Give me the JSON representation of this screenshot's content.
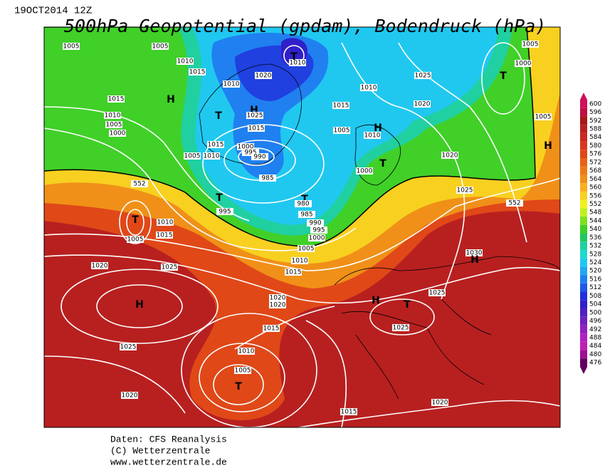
{
  "header": {
    "date": "19OCT2014 12Z",
    "title": "500hPa Geopotential (gpdam), Bodendruck (hPa)"
  },
  "map": {
    "labels": [
      "1005",
      "1005",
      "1010",
      "1015",
      "1010",
      "1020",
      "1010",
      "T",
      "H",
      "T",
      "1025",
      "1015",
      "1015",
      "1010",
      "1005",
      "1000",
      "H",
      "1015",
      "1005",
      "1010",
      "1000",
      "995",
      "990",
      "985",
      "T",
      "995",
      "T",
      "980",
      "985",
      "990",
      "995",
      "1000",
      "1005",
      "1010",
      "1015",
      "1020",
      "1020",
      "1015",
      "1010",
      "1005",
      "T",
      "1020",
      "1025",
      "H",
      "1020",
      "1025",
      "1015",
      "1010",
      "T",
      "1005",
      "1010",
      "1015",
      "1005",
      "1010",
      "H",
      "1000",
      "T",
      "1020",
      "1025",
      "1020",
      "1025",
      "T",
      "1000",
      "1005",
      "1005",
      "H",
      "552",
      "552",
      "1030",
      "H",
      "1025",
      "H",
      "T",
      "1025",
      "1020",
      "1015"
    ]
  },
  "colorbar": {
    "levels": [
      600,
      596,
      592,
      588,
      584,
      580,
      576,
      572,
      568,
      564,
      560,
      556,
      552,
      548,
      544,
      540,
      536,
      532,
      528,
      524,
      520,
      516,
      512,
      508,
      504,
      500,
      496,
      492,
      488,
      484,
      480,
      476
    ],
    "colors": [
      "#d0105a",
      "#c01040",
      "#a81818",
      "#b82020",
      "#c82820",
      "#d83820",
      "#e04818",
      "#e86018",
      "#f07818",
      "#f09018",
      "#f8b020",
      "#f8d020",
      "#f0f020",
      "#c0f020",
      "#80e020",
      "#40d028",
      "#20c860",
      "#20d0a0",
      "#20d8d0",
      "#20c8f0",
      "#20a8f0",
      "#2080f0",
      "#2058e8",
      "#2030d8",
      "#3020c8",
      "#5020c0",
      "#7020c0",
      "#9020c0",
      "#b020c0",
      "#c020b0",
      "#a01090",
      "#600060"
    ]
  },
  "footer": {
    "source": "Daten: CFS Reanalysis",
    "copyright": "(C) Wetterzentrale",
    "url": "www.wetterzentrale.de"
  }
}
